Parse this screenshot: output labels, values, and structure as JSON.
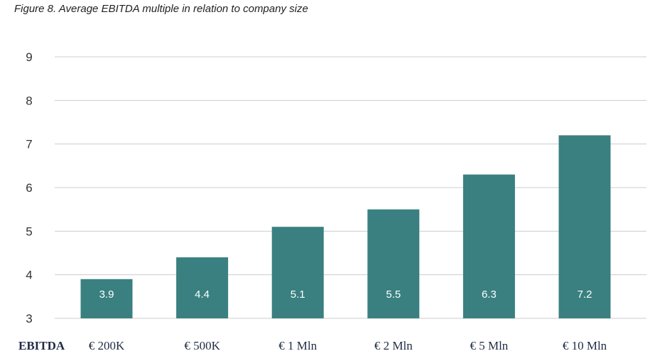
{
  "title": "Figure 8. Average EBITDA multiple in relation to company size",
  "chart_data": {
    "type": "bar",
    "title": "Figure 8. Average EBITDA multiple in relation to company size",
    "row_label": "EBITDA",
    "categories": [
      "€ 200K",
      "€ 500K",
      "€ 1 Mln",
      "€ 2 Mln",
      "€ 5 Mln",
      "€ 10 Mln"
    ],
    "values": [
      3.9,
      4.4,
      5.1,
      5.5,
      6.3,
      7.2
    ],
    "value_labels": [
      "3.9",
      "4.4",
      "5.1",
      "5.5",
      "6.3",
      "7.2"
    ],
    "ylim": [
      3,
      9
    ],
    "yticks": [
      3,
      4,
      5,
      6,
      7,
      8,
      9
    ],
    "grid": true,
    "colors": {
      "bar": "#3a8080",
      "grid": "#cccccc"
    }
  }
}
